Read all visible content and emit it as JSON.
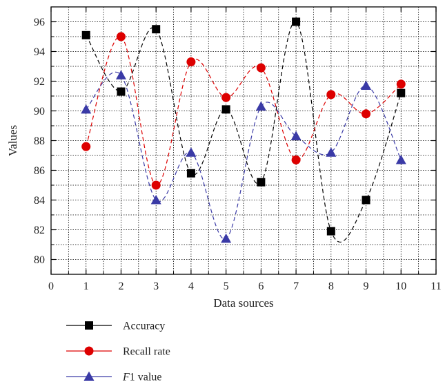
{
  "chart_data": {
    "type": "line",
    "title": "",
    "xlabel": "Data sources",
    "ylabel": "Values",
    "xlim": [
      0,
      11
    ],
    "ylim": [
      79,
      97
    ],
    "x_ticks": [
      0,
      1,
      2,
      3,
      4,
      5,
      6,
      7,
      8,
      9,
      10,
      11
    ],
    "y_ticks": [
      80,
      82,
      84,
      86,
      88,
      90,
      92,
      94,
      96
    ],
    "grid": true,
    "curve": "smooth spline, dashed",
    "legend_position": "below plot, left",
    "x": [
      1,
      2,
      3,
      4,
      5,
      6,
      7,
      8,
      9,
      10
    ],
    "series": [
      {
        "name": "Accuracy",
        "marker": "square",
        "color": "#000000",
        "values": [
          95.1,
          91.3,
          95.5,
          85.8,
          90.1,
          85.2,
          96.0,
          81.9,
          84.0,
          91.2
        ]
      },
      {
        "name": "Recall rate",
        "marker": "circle",
        "color": "#dd0000",
        "values": [
          87.6,
          95.0,
          85.0,
          93.3,
          90.9,
          92.9,
          86.7,
          91.1,
          89.8,
          91.8
        ]
      },
      {
        "name": "F1 value",
        "marker": "triangle",
        "color": "#3a3aa6",
        "values": [
          90.1,
          92.4,
          84.0,
          87.2,
          81.4,
          90.3,
          88.3,
          87.2,
          91.7,
          86.7
        ]
      }
    ]
  }
}
